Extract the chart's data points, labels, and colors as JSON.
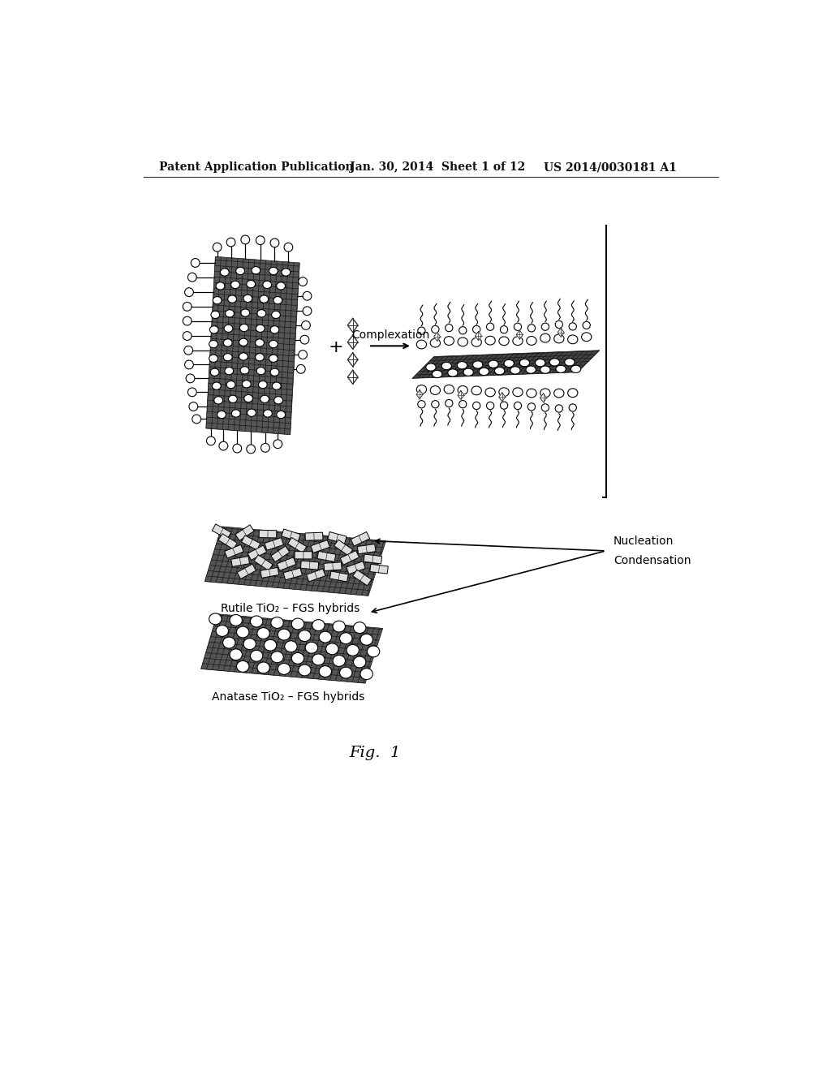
{
  "bg_color": "#ffffff",
  "header_left": "Patent Application Publication",
  "header_center": "Jan. 30, 2014  Sheet 1 of 12",
  "header_right": "US 2014/0030181 A1",
  "label_rutile": "Rutile TiO₂ – FGS hybrids",
  "label_anatase": "Anatase TiO₂ – FGS hybrids",
  "label_complexation": "Complexation",
  "label_nucleation": "Nucleation",
  "label_condensation": "Condensation",
  "label_plus": "+",
  "fig_label": "Fig.  1",
  "text_color": "#111111",
  "sheet_face_color": "#888888",
  "sheet_edge_color": "#111111",
  "sheet_hatch_color": "#111111"
}
